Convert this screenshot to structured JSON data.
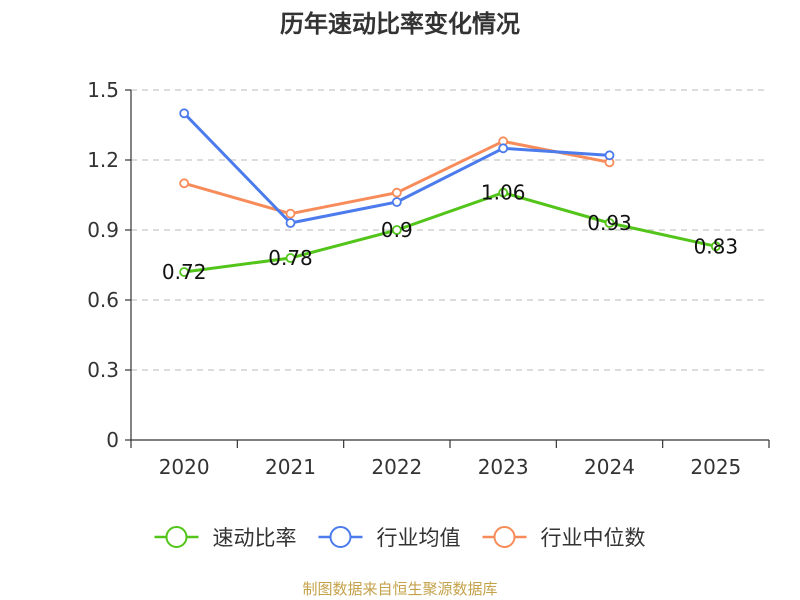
{
  "chart_data": {
    "type": "line",
    "title": "历年速动比率变化情况",
    "categories": [
      "2020",
      "2021",
      "2022",
      "2023",
      "2024",
      "2025"
    ],
    "ylim": [
      0,
      1.5
    ],
    "yticks": [
      "0",
      "0.3",
      "0.6",
      "0.9",
      "1.2",
      "1.5"
    ],
    "grid": true,
    "legend_position": "bottom",
    "series": [
      {
        "name": "速动比率",
        "color": "#52c41a",
        "show_labels": true,
        "values": [
          0.72,
          0.78,
          0.9,
          1.06,
          0.93,
          0.83
        ],
        "labels": [
          "0.72",
          "0.78",
          "0.9",
          "1.06",
          "0.93",
          "0.83"
        ]
      },
      {
        "name": "行业均值",
        "color": "#4b7bec",
        "show_labels": false,
        "values": [
          1.4,
          0.93,
          1.02,
          1.25,
          1.22,
          null
        ]
      },
      {
        "name": "行业中位数",
        "color": "#f78c5a",
        "show_labels": false,
        "values": [
          1.1,
          0.97,
          1.06,
          1.28,
          1.19,
          null
        ]
      }
    ]
  },
  "source_text": "制图数据来自恒生聚源数据库"
}
